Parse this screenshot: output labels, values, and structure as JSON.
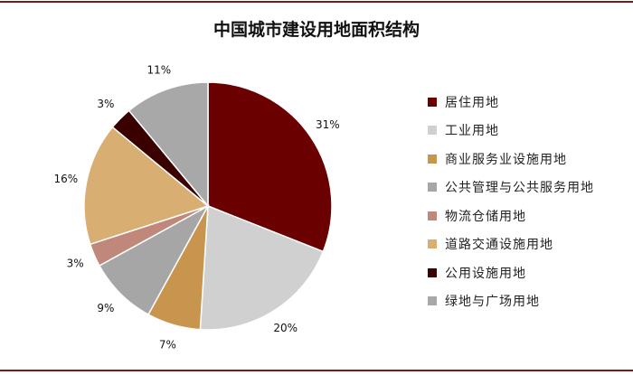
{
  "chart_data": {
    "type": "pie",
    "title": "中国城市建设用地面积结构",
    "legend_position": "right",
    "categories": [
      "居住用地",
      "工业用地",
      "商业服务业设施用地",
      "公共管理与公共服务用地",
      "物流仓储用地",
      "道路交通设施用地",
      "公用设施用地",
      "绿地与广场用地"
    ],
    "values": [
      31,
      20,
      7,
      9,
      3,
      16,
      3,
      11
    ],
    "labels": [
      "31%",
      "20%",
      "7%",
      "9%",
      "3%",
      "16%",
      "3%",
      "11%"
    ],
    "colors": [
      "#6b0000",
      "#d0d0d0",
      "#c8954f",
      "#a6a6a6",
      "#c0887a",
      "#d8ae72",
      "#3a0000",
      "#a8a8a8"
    ]
  }
}
